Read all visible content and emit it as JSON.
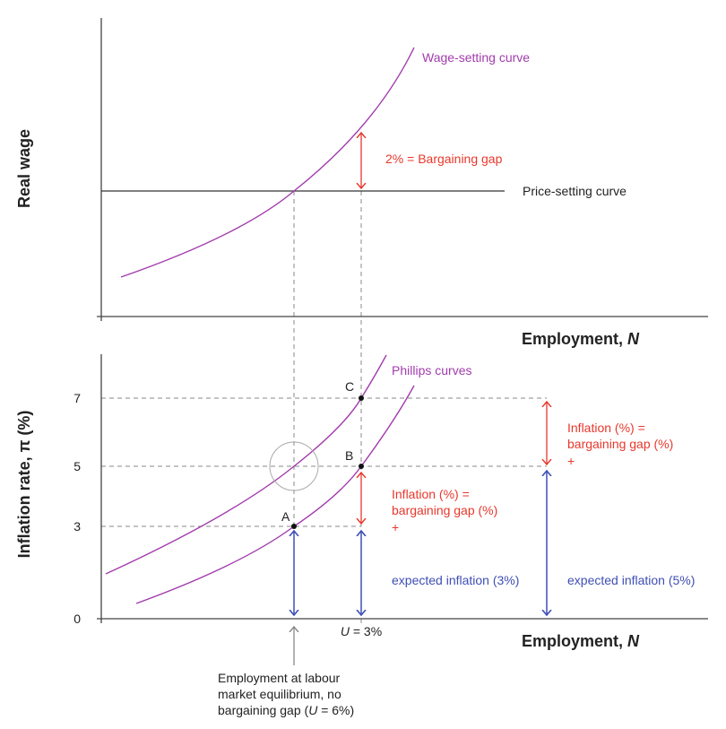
{
  "top_panel": {
    "y_axis_title": "Real wage",
    "x_axis_title": "Employment, ",
    "x_axis_var": "N",
    "wage_curve_label": "Wage-setting curve",
    "price_curve_label": "Price-setting curve",
    "gap_label": "2% = Bargaining gap"
  },
  "bottom_panel": {
    "y_axis_title": "Inflation rate, π (%)",
    "x_axis_title": "Employment, ",
    "x_axis_var": "N",
    "y_ticks": [
      "7",
      "5",
      "3",
      "0"
    ],
    "phillips_label": "Phillips curves",
    "points": [
      "A",
      "B",
      "C"
    ],
    "gap_label_1": [
      "Inflation (%) =",
      "bargaining gap (%)",
      "+"
    ],
    "gap_label_2": [
      "Inflation (%) =",
      "bargaining gap (%)",
      "+"
    ],
    "expected_1": "expected inflation (3%)",
    "expected_2": "expected inflation (5%)",
    "u_label_var": "U",
    "u_label_value": " = 3%",
    "annotation": [
      "Employment at labour",
      "market equilibrium, no",
      "bargaining gap (",
      "U",
      " = 6%)"
    ]
  },
  "colors": {
    "curve": "#a23cad",
    "gap": "#e8382c",
    "expected": "#3f4fb5",
    "axis": "#444444",
    "guide": "#888888"
  }
}
